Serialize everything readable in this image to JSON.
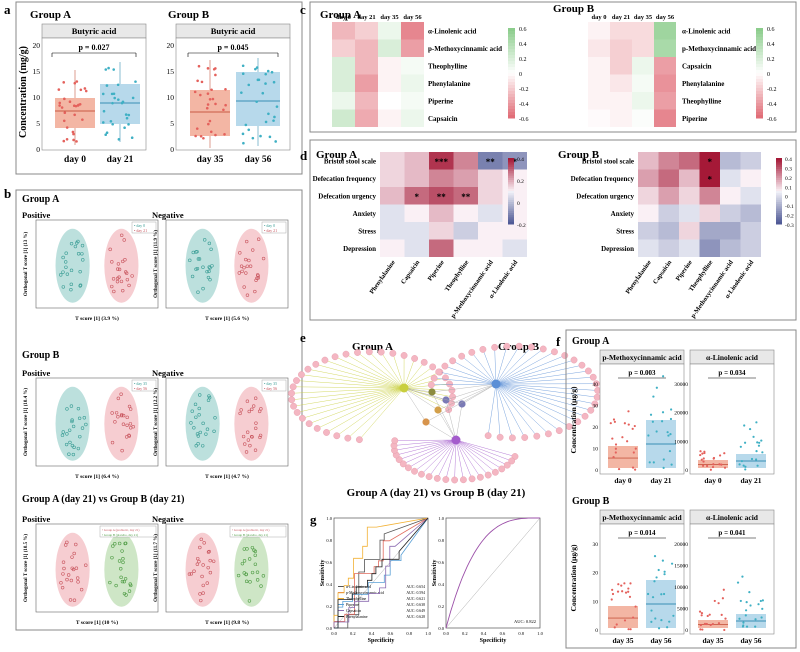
{
  "panels": {
    "a": {
      "letter": "a",
      "ylabel": "Concentration (mg/g)",
      "metabolite": "Butyric acid",
      "groupA": {
        "title": "Group A",
        "p": "p = 0.027",
        "x_labels": [
          "day 0",
          "day 21"
        ]
      },
      "groupB": {
        "title": "Group B",
        "p": "p = 0.045",
        "x_labels": [
          "day 35",
          "day 56"
        ]
      },
      "y_ticks": [
        "0",
        "5",
        "10",
        "15",
        "20"
      ]
    },
    "b": {
      "letter": "b",
      "groupA": {
        "title": "Group A",
        "pos": "Positive",
        "neg": "Negative",
        "pos_x": "T score [1] (3.9 %)",
        "pos_y": "Orthogonal T score [1] (13 %)",
        "neg_x": "T score [1] (5.6 %)",
        "neg_y": "Orthogonal T score [1] (11.9 %)",
        "legend": [
          "day 0",
          "day 21"
        ]
      },
      "groupB": {
        "title": "Group B",
        "pos": "Positive",
        "neg": "Negative",
        "pos_x": "T score [1] (6.4 %)",
        "pos_y": "Orthogonal T score [1] (10.4 %)",
        "neg_x": "T score [1] (4.7 %)",
        "neg_y": "Orthogonal T score [1] (12.2 %)",
        "legend": [
          "day 35",
          "day 56"
        ]
      },
      "groupAB": {
        "title": "Group A (day 21) vs Group B (day 21)",
        "pos": "Positive",
        "neg": "Negative",
        "pos_x": "T score [1] (10 %)",
        "pos_y": "Orthogonal T score [1] (10.5 %)",
        "neg_x": "T score [1] (9.8 %)",
        "neg_y": "Orthogonal T score [1] (11.7 %)",
        "legend": [
          "Group A (probiotic, day 21)",
          "Group B (placebo, day 21)"
        ]
      }
    },
    "c": {
      "letter": "c",
      "groupA": {
        "title": "Group A",
        "cols": [
          "day 0",
          "day 21",
          "day 35",
          "day 56"
        ],
        "rows": [
          "α-Linolenic acid",
          "p-Methoxycinnamic acid",
          "Theophylline",
          "Phenylalanine",
          "Piperine",
          "Capsaicin"
        ],
        "values": [
          [
            -0.3,
            -0.2,
            0.1,
            -0.5
          ],
          [
            -0.2,
            -0.3,
            0.2,
            -0.4
          ],
          [
            0.2,
            -0.3,
            -0.05,
            0.05
          ],
          [
            0.2,
            -0.4,
            -0.05,
            0.1
          ],
          [
            0.1,
            -0.3,
            0.0,
            0.05
          ],
          [
            0.25,
            -0.35,
            -0.05,
            0.1
          ]
        ]
      },
      "groupB": {
        "title": "Group B",
        "cols": [
          "day 0",
          "day 21",
          "day 35",
          "day 56"
        ],
        "rows": [
          "α-Linolenic acid",
          "p-Methoxycinnamic acid",
          "Capsaicin",
          "Phenylalanine",
          "Theophylline",
          "Piperine"
        ],
        "values": [
          [
            -0.05,
            -0.15,
            -0.15,
            0.5
          ],
          [
            -0.1,
            -0.2,
            -0.15,
            0.45
          ],
          [
            -0.05,
            -0.2,
            0.1,
            -0.4
          ],
          [
            -0.05,
            -0.1,
            0.05,
            -0.45
          ],
          [
            -0.05,
            -0.05,
            0.1,
            -0.4
          ],
          [
            -0.02,
            -0.05,
            0.02,
            -0.5
          ]
        ]
      },
      "legend_ticks": [
        "0.6",
        "0.4",
        "0.2",
        "0",
        "-0.2",
        "-0.4",
        "-0.6"
      ]
    },
    "d": {
      "letter": "d",
      "groupA": {
        "title": "Group A",
        "rows": [
          "Bristol stool scale",
          "Defecation frequency",
          "Defecation urgency",
          "Anxiety",
          "Stress",
          "Depression"
        ],
        "cols": [
          "Phenylalanine",
          "Capsaicin",
          "Piperine",
          "Theophylline",
          "p-Methoxycinnamic acid",
          "α-Linolenic acid"
        ],
        "values": [
          [
            0.05,
            0.1,
            0.35,
            0.2,
            -0.3,
            -0.25
          ],
          [
            0.05,
            0.1,
            0.2,
            0.15,
            0.05,
            0.0
          ],
          [
            0.1,
            0.25,
            0.3,
            0.25,
            0.05,
            0.0
          ],
          [
            -0.05,
            0.0,
            0.1,
            0.0,
            -0.05,
            0.0
          ],
          [
            -0.05,
            -0.05,
            0.05,
            -0.1,
            0.0,
            0.0
          ],
          [
            0.0,
            -0.05,
            0.25,
            0.0,
            0.0,
            -0.05
          ]
        ],
        "stars": [
          [
            "",
            "",
            "***",
            "",
            "**",
            "*"
          ],
          [
            "",
            "",
            "",
            "",
            "",
            ""
          ],
          [
            "",
            "*",
            "**",
            "**",
            "",
            ""
          ],
          [
            "",
            "",
            "",
            "",
            "",
            ""
          ],
          [
            "",
            "",
            "",
            "",
            "",
            ""
          ],
          [
            "",
            "",
            "",
            "",
            "",
            ""
          ]
        ],
        "legend_ticks": [
          "0.4",
          "0.2",
          "0",
          "-0.2"
        ]
      },
      "groupB": {
        "title": "Group B",
        "rows": [
          "Bristol stool scale",
          "Defecation frequency",
          "Defecation urgency",
          "Anxiety",
          "Stress",
          "Depression"
        ],
        "cols": [
          "Phenylalanine",
          "Capsaicin",
          "Piperine",
          "Theophylline",
          "p-Methoxycinnamic acid",
          "α-Linolenic acid"
        ],
        "values": [
          [
            0.1,
            0.2,
            0.25,
            0.4,
            -0.15,
            -0.1
          ],
          [
            0.15,
            0.25,
            0.1,
            0.4,
            -0.05,
            0.0
          ],
          [
            0.05,
            0.15,
            0.05,
            0.2,
            0.0,
            -0.05
          ],
          [
            0.0,
            -0.1,
            -0.05,
            0.05,
            -0.1,
            -0.15
          ],
          [
            -0.1,
            -0.15,
            0.05,
            -0.2,
            -0.2,
            -0.1
          ],
          [
            -0.05,
            -0.1,
            -0.05,
            -0.25,
            -0.15,
            -0.1
          ]
        ],
        "stars": [
          [
            "",
            "",
            "",
            "*",
            "",
            ""
          ],
          [
            "",
            "",
            "",
            "*",
            "",
            ""
          ],
          [
            "",
            "",
            "",
            "",
            "",
            ""
          ],
          [
            "",
            "",
            "",
            "",
            "",
            ""
          ],
          [
            "",
            "",
            "",
            "",
            "",
            ""
          ],
          [
            "",
            "",
            "",
            "",
            "",
            ""
          ]
        ],
        "legend_ticks": [
          "0.4",
          "0.3",
          "0.2",
          "0.1",
          "0",
          "-0.1",
          "-0.2",
          "-0.3"
        ]
      }
    },
    "e": {
      "letter": "e",
      "groupA": "Group A",
      "groupB": "Group B",
      "caption": "Group A (day 21) vs Group B (day 21)"
    },
    "f": {
      "letter": "f",
      "ylabel": "Concentration (μg/g)",
      "groupA": {
        "title": "Group A",
        "x_labels": [
          "day 0",
          "day 21"
        ],
        "m1": {
          "name": "p-Methoxycinnamic acid",
          "p": "p = 0.003",
          "ticks": [
            "0",
            "10",
            "20",
            "30",
            "40"
          ]
        },
        "m2": {
          "name": "α-Linolenic acid",
          "p": "p = 0.034",
          "ticks": [
            "0",
            "10000",
            "20000",
            "30000"
          ]
        }
      },
      "groupB": {
        "title": "Group B",
        "x_labels": [
          "day 35",
          "day 56"
        ],
        "m1": {
          "name": "p-Methoxycinnamic acid",
          "p": "p = 0.014",
          "ticks": [
            "0",
            "10",
            "20",
            "30"
          ]
        },
        "m2": {
          "name": "α-Linolenic acid",
          "p": "p = 0.041",
          "ticks": [
            "0",
            "5000",
            "10000",
            "15000",
            "20000"
          ]
        }
      }
    },
    "g": {
      "letter": "g",
      "xlabel": "Specificity",
      "ylabel": "Sensitivity",
      "ticks": [
        "0.0",
        "0.2",
        "0.4",
        "0.6",
        "0.8",
        "1.0"
      ],
      "legend": [
        {
          "name": "α-Linolenic acid",
          "auc": "AUC: 0.654",
          "color": "#555555"
        },
        {
          "name": "p-Methoxycinnamic acid",
          "auc": "AUC: 0.594",
          "color": "#e06b5e"
        },
        {
          "name": "Theophylline",
          "auc": "AUC: 0.621",
          "color": "#f2b134"
        },
        {
          "name": "Piperine",
          "auc": "AUC: 0.638",
          "color": "#5aa0d6"
        },
        {
          "name": "Capsaicin",
          "auc": "AUC: 0.649",
          "color": "#8c6bb1"
        },
        {
          "name": "Phenylalanine",
          "auc": "AUC: 0.628",
          "color": "#222222"
        }
      ],
      "combined_auc": "AUC: 0.822"
    }
  },
  "colors": {
    "red": "#e4615c",
    "blue": "#3fb0c4",
    "green": "#55b25a",
    "pink": "#f4b6c2",
    "boxRed": "#f0a48d",
    "boxBlue": "#a5d0e6"
  }
}
